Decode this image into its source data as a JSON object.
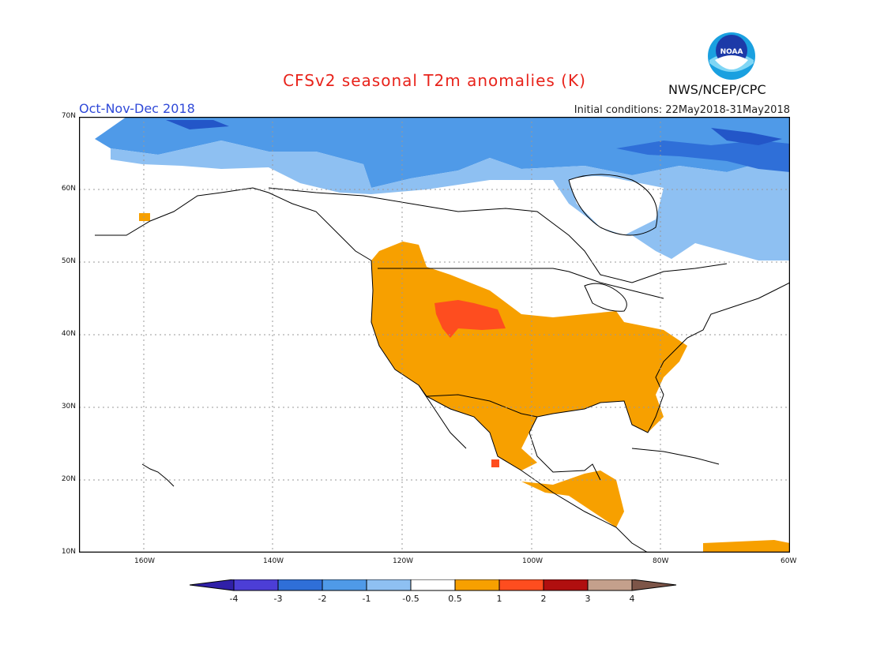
{
  "header": {
    "title": "CFSv2 seasonal T2m anomalies (K)",
    "season": "Oct-Nov-Dec 2018",
    "initial_conditions": "Initial conditions: 22May2018-31May2018",
    "agency": "NWS/NCEP/CPC",
    "logo_text": "NOAA"
  },
  "map": {
    "projection": "lat-lon",
    "lon_range": [
      -170,
      -60
    ],
    "lat_range": [
      10,
      70
    ],
    "lat_labels": [
      "70N",
      "60N",
      "50N",
      "40N",
      "30N",
      "20N",
      "10N"
    ],
    "lon_labels": [
      "160W",
      "140W",
      "120W",
      "100W",
      "80W",
      "60W"
    ],
    "grid": "dotted",
    "regions": [
      {
        "name": "arctic-cold",
        "category": "-1",
        "color": "#4f9ae8"
      },
      {
        "name": "canada-cool",
        "category": "-0.5",
        "color": "#8ec0f2"
      },
      {
        "name": "greenland-cold",
        "category": "-3",
        "color": "#2356c8"
      },
      {
        "name": "us-warm",
        "category": "0.5",
        "color": "#f7a000"
      },
      {
        "name": "rockies-hot",
        "category": "1",
        "color": "#fe4d1f"
      },
      {
        "name": "central-america-warm",
        "category": "0.5",
        "color": "#f7a000"
      }
    ]
  },
  "colorbar": {
    "labels": [
      "-4",
      "-3",
      "-2",
      "-1",
      "-0.5",
      "0.5",
      "1",
      "2",
      "3",
      "4"
    ],
    "colors": [
      "#3020a8",
      "#4c3ed6",
      "#2f6fd8",
      "#4f9ae8",
      "#8ec0f2",
      "#ffffff",
      "#f7a000",
      "#fe4d1f",
      "#b00f0f",
      "#c4a08c",
      "#7d5548"
    ]
  }
}
